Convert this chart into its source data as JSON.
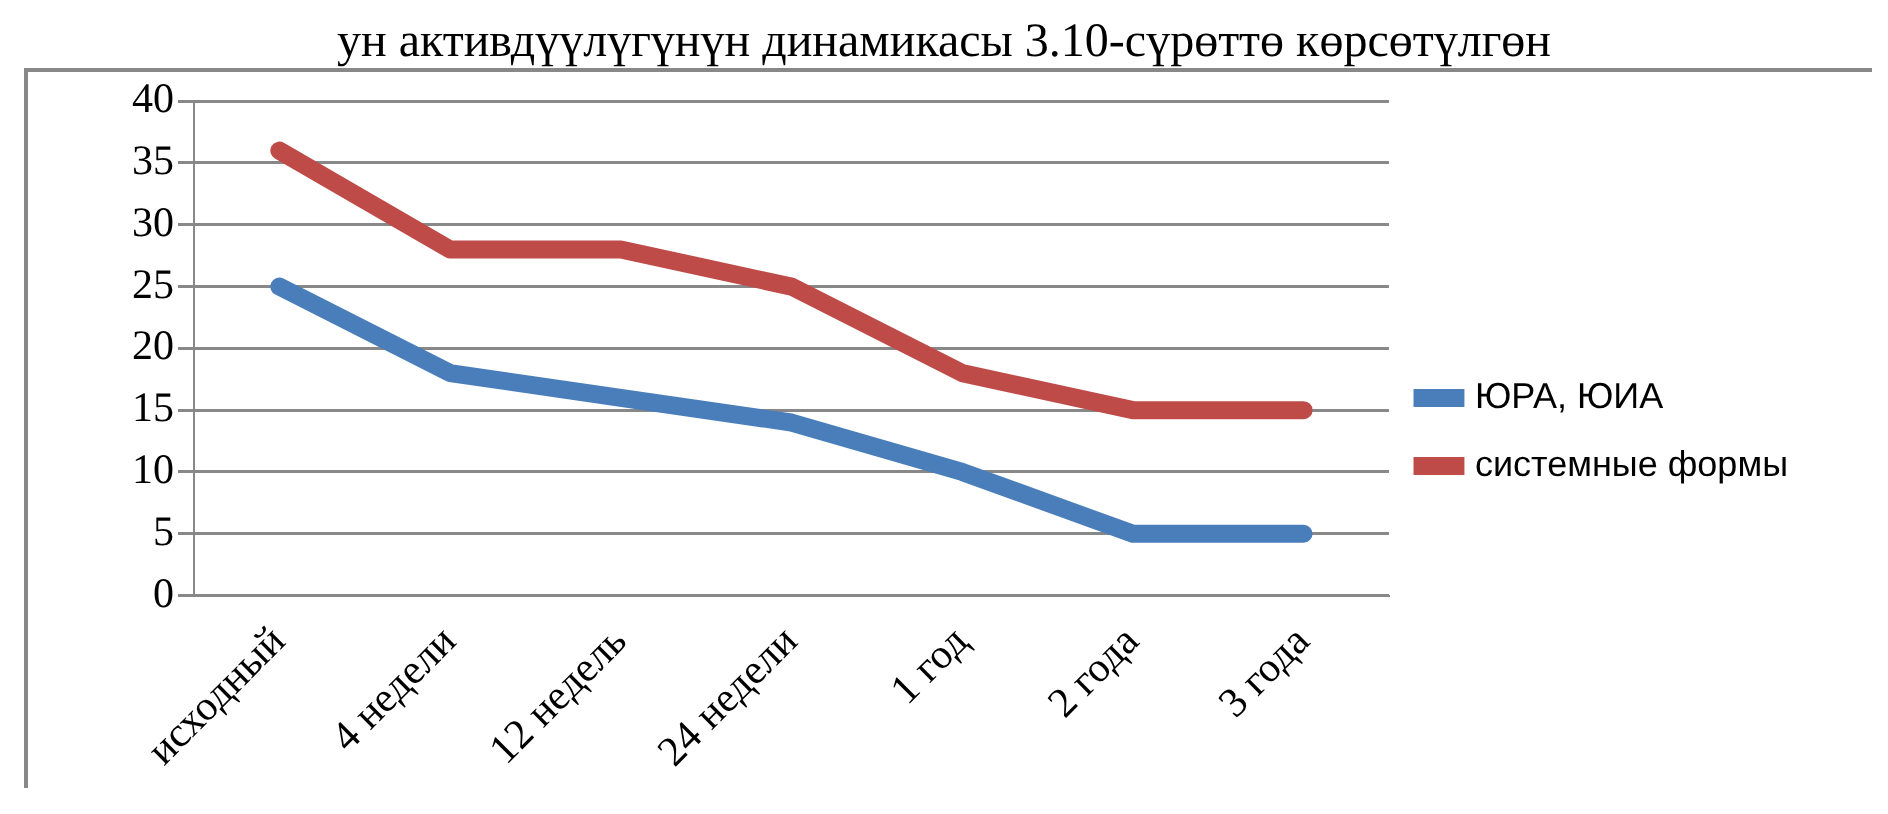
{
  "chart_data": {
    "type": "line",
    "annotations": [
      "ун активдүүлүгүнүн динамикасы 3.10-сүрөттө көрсөтүлгөн"
    ],
    "categories": [
      "исходный",
      "4 недели",
      "12 недель",
      "24 недели",
      "1 год",
      "2 года",
      "3 года"
    ],
    "series": [
      {
        "name": "ЮРА, ЮИА",
        "color": "#4a7ebb",
        "values": [
          25,
          18,
          16,
          14,
          10,
          5,
          5
        ]
      },
      {
        "name": "системные формы",
        "color": "#be4b48",
        "values": [
          36,
          28,
          28,
          25,
          18,
          15,
          15
        ]
      }
    ],
    "ylim": [
      0,
      40
    ],
    "yticks": [
      0,
      5,
      10,
      15,
      20,
      25,
      30,
      35,
      40
    ],
    "grid": "y",
    "legend": "right",
    "marker": "none",
    "line_style": "solid"
  }
}
